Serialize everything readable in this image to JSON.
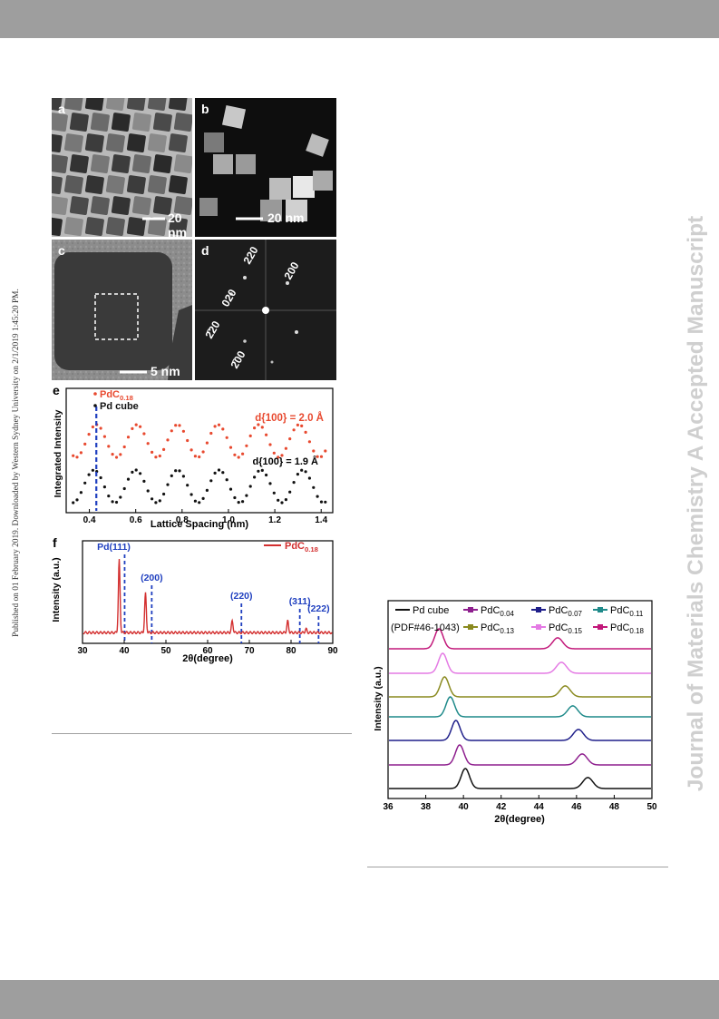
{
  "side_left_text": "Published on 01 February 2019. Downloaded by Western Sydney University on 2/1/2019 1:45:20 PM.",
  "side_right_text": "Journal of Materials Chemistry A Accepted Manuscript",
  "panels": {
    "a": {
      "label": "a",
      "scale": "20 nm"
    },
    "b": {
      "label": "b",
      "scale": "20 nm"
    },
    "c": {
      "label": "c",
      "scale": "5 nm"
    },
    "d": {
      "label": "d",
      "spots": [
        "220",
        "200",
        "020",
        "2̄20",
        "2̄00"
      ]
    }
  },
  "chart_data": [
    {
      "id": "e",
      "type": "line",
      "panel_label": "e",
      "xlabel": "Lattice Spacing (nm)",
      "ylabel": "Integrated Intensity",
      "xlim": [
        0.3,
        1.45
      ],
      "xticks": [
        "0.4",
        "0.6",
        "0.8",
        "1.0",
        "1.2",
        "1.4"
      ],
      "series": [
        {
          "name": "PdC",
          "sub": "0.18",
          "color": "#e8492f",
          "annotation": "d{100} = 2.0 Å",
          "period": 0.175,
          "phase": 0.43
        },
        {
          "name": "Pd cube",
          "color": "#111111",
          "annotation": "d{100} = 1.9 Å",
          "period": 0.18,
          "phase": 0.42
        }
      ],
      "marker_x": 0.43,
      "marker_color": "#1f3fbf"
    },
    {
      "id": "f",
      "type": "line",
      "panel_label": "f",
      "xlabel": "2θ(degree)",
      "ylabel": "Intensity (a.u.)",
      "xlim": [
        30,
        90
      ],
      "xticks": [
        "30",
        "40",
        "50",
        "60",
        "70",
        "80",
        "90"
      ],
      "legend": {
        "name": "PdC",
        "sub": "0.18",
        "color": "#d32f2f"
      },
      "peaks": [
        {
          "x": 38.8,
          "h": 1.0
        },
        {
          "x": 45.1,
          "h": 0.54
        },
        {
          "x": 65.9,
          "h": 0.16
        },
        {
          "x": 79.2,
          "h": 0.16
        },
        {
          "x": 83.6,
          "h": 0.05
        }
      ],
      "reference_lines": [
        {
          "label": "Pd(111)",
          "x": 40.1
        },
        {
          "label": "(200)",
          "x": 46.6
        },
        {
          "label": "(220)",
          "x": 68.1
        },
        {
          "label": "(311)",
          "x": 82.1
        },
        {
          "label": "(222)",
          "x": 86.6
        }
      ],
      "reference_color": "#1f3fbf"
    },
    {
      "id": "g",
      "type": "line",
      "xlabel": "2θ(degree)",
      "ylabel": "Intensity (a.u.)",
      "xlim": [
        36,
        50
      ],
      "xticks": [
        "36",
        "38",
        "40",
        "42",
        "44",
        "46",
        "48",
        "50"
      ],
      "reference_note": "(PDF#46-1043)",
      "series": [
        {
          "name": "Pd cube",
          "color": "#111111",
          "peaks": [
            40.1,
            46.6
          ]
        },
        {
          "name": "PdC",
          "sub": "0.04",
          "color": "#8e1f8e",
          "peaks": [
            39.8,
            46.3
          ]
        },
        {
          "name": "PdC",
          "sub": "0.07",
          "color": "#1f1f8a",
          "peaks": [
            39.6,
            46.1
          ]
        },
        {
          "name": "PdC",
          "sub": "0.11",
          "color": "#1f8a8a",
          "peaks": [
            39.3,
            45.8
          ]
        },
        {
          "name": "PdC",
          "sub": "0.13",
          "color": "#8a8a1f",
          "peaks": [
            39.0,
            45.4
          ]
        },
        {
          "name": "PdC",
          "sub": "0.15",
          "color": "#e47ae4",
          "peaks": [
            38.9,
            45.2
          ]
        },
        {
          "name": "PdC",
          "sub": "0.18",
          "color": "#c2187a",
          "peaks": [
            38.7,
            45.0
          ]
        }
      ]
    }
  ]
}
